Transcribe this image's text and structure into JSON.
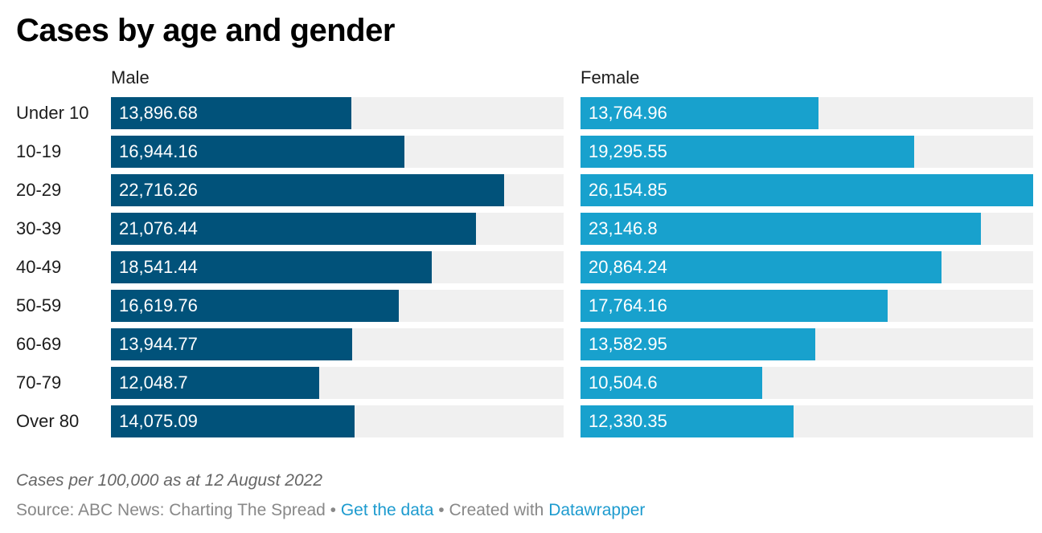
{
  "chart_data": {
    "type": "bar",
    "title": "Cases by age and gender",
    "categories": [
      "Under 10",
      "10-19",
      "20-29",
      "30-39",
      "40-49",
      "50-59",
      "60-69",
      "70-79",
      "Over 80"
    ],
    "series": [
      {
        "name": "Male",
        "color": "#01527a",
        "values": [
          13896.68,
          16944.16,
          22716.26,
          21076.44,
          18541.44,
          16619.76,
          13944.77,
          12048.7,
          14075.09
        ],
        "labels": [
          "13,896.68",
          "16,944.16",
          "22,716.26",
          "21,076.44",
          "18,541.44",
          "16,619.76",
          "13,944.77",
          "12,048.7",
          "14,075.09"
        ]
      },
      {
        "name": "Female",
        "color": "#18a1cd",
        "values": [
          13764.96,
          19295.55,
          26154.85,
          23146.8,
          20864.24,
          17764.16,
          13582.95,
          10504.6,
          12330.35
        ],
        "labels": [
          "13,764.96",
          "19,295.55",
          "26,154.85",
          "23,146.8",
          "20,864.24",
          "17,764.16",
          "13,582.95",
          "10,504.6",
          "12,330.35"
        ]
      }
    ],
    "xlim": [
      0,
      26154.85
    ],
    "background_color": "#f0f0f0",
    "xlabel": "",
    "ylabel": ""
  },
  "notes": "Cases per 100,000 as at 12 August 2022",
  "footer": {
    "source": "Source: ABC News: Charting The Spread",
    "separator": " • ",
    "get_data": "Get the data",
    "created_with": "Created with",
    "tool": "Datawrapper",
    "link_color": "#1d9bcf"
  }
}
